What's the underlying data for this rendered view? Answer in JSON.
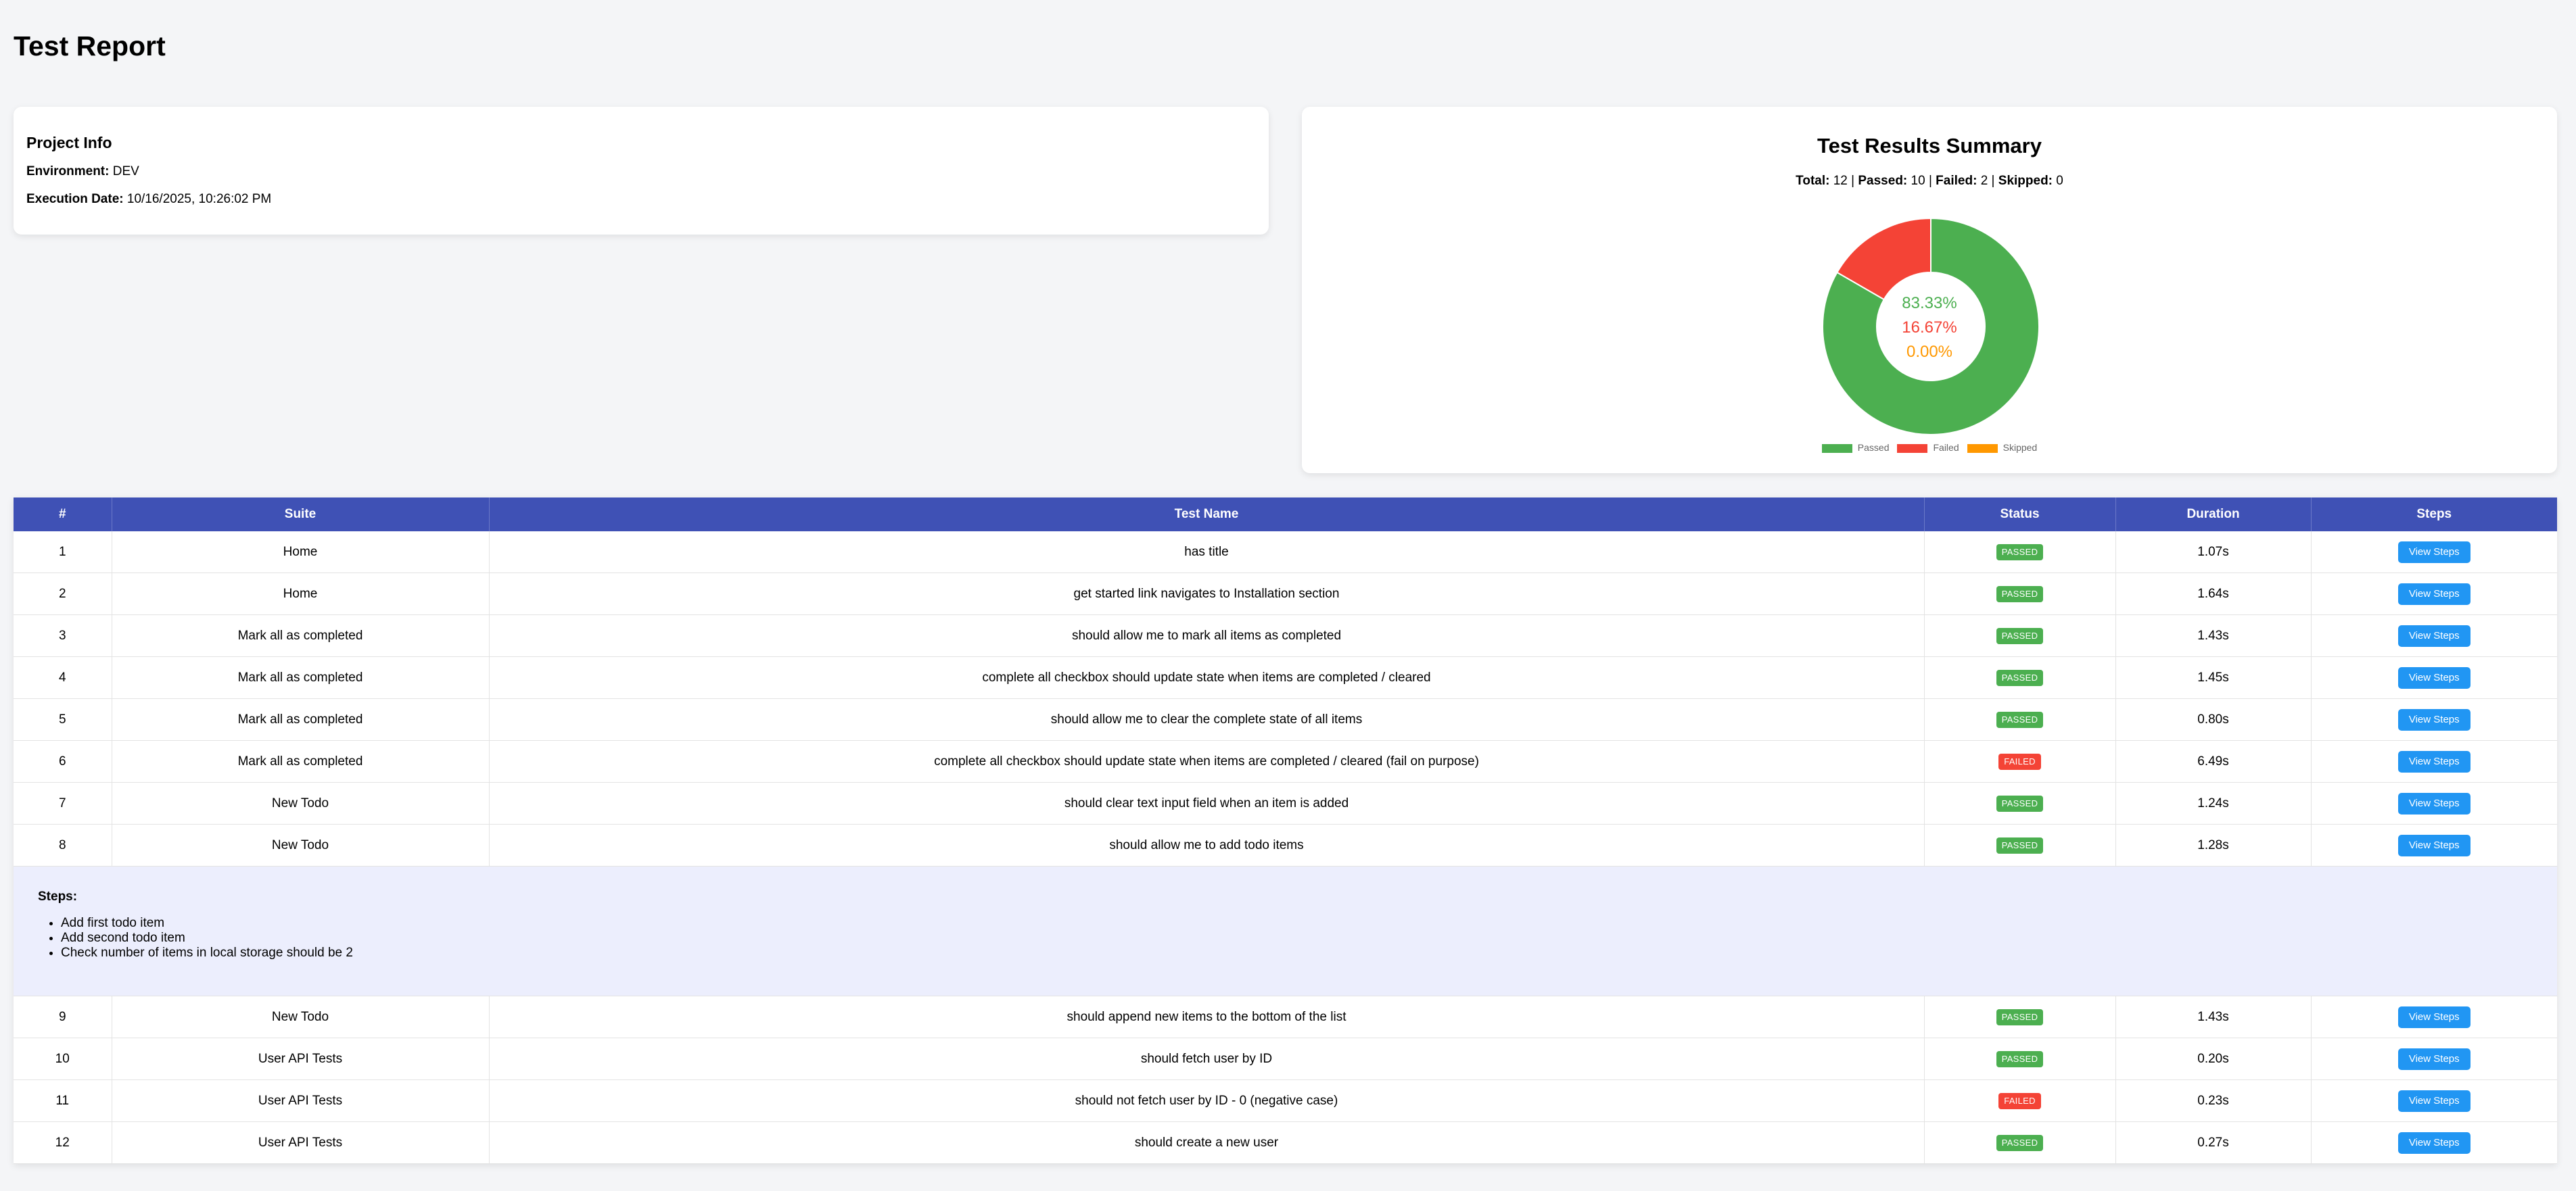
{
  "page_title": "Test Report",
  "project_info": {
    "title": "Project Info",
    "environment_label": "Environment:",
    "environment_value": "DEV",
    "execution_date_label": "Execution Date:",
    "execution_date_value": "10/16/2025, 10:26:02 PM"
  },
  "summary": {
    "title": "Test Results Summary",
    "total_label": "Total:",
    "total_value": "12",
    "passed_label": "Passed:",
    "passed_value": "10",
    "failed_label": "Failed:",
    "failed_value": "2",
    "skipped_label": "Skipped:",
    "skipped_value": "0",
    "separator": "|",
    "passed_pct": "83.33%",
    "failed_pct": "16.67%",
    "skipped_pct": "0.00%"
  },
  "chart_data": {
    "type": "pie",
    "categories": [
      "Passed",
      "Failed",
      "Skipped"
    ],
    "values": [
      10,
      2,
      0
    ],
    "colors": [
      "#4caf50",
      "#f44336",
      "#ff9800"
    ],
    "legend": "bottom"
  },
  "colors": {
    "passed": "#4caf50",
    "failed": "#f44336",
    "skipped": "#ff9800",
    "header": "#3f51b5",
    "button": "#2196f3"
  },
  "table": {
    "headers": [
      "#",
      "Suite",
      "Test Name",
      "Status",
      "Duration",
      "Steps"
    ],
    "button_label": "View Steps",
    "rows": [
      {
        "num": "1",
        "suite": "Home",
        "name": "has title",
        "status": "PASSED",
        "duration": "1.07s"
      },
      {
        "num": "2",
        "suite": "Home",
        "name": "get started link navigates to Installation section",
        "status": "PASSED",
        "duration": "1.64s"
      },
      {
        "num": "3",
        "suite": "Mark all as completed",
        "name": "should allow me to mark all items as completed",
        "status": "PASSED",
        "duration": "1.43s"
      },
      {
        "num": "4",
        "suite": "Mark all as completed",
        "name": "complete all checkbox should update state when items are completed / cleared",
        "status": "PASSED",
        "duration": "1.45s"
      },
      {
        "num": "5",
        "suite": "Mark all as completed",
        "name": "should allow me to clear the complete state of all items",
        "status": "PASSED",
        "duration": "0.80s"
      },
      {
        "num": "6",
        "suite": "Mark all as completed",
        "name": "complete all checkbox should update state when items are completed / cleared (fail on purpose)",
        "status": "FAILED",
        "duration": "6.49s"
      },
      {
        "num": "7",
        "suite": "New Todo",
        "name": "should clear text input field when an item is added",
        "status": "PASSED",
        "duration": "1.24s"
      },
      {
        "num": "8",
        "suite": "New Todo",
        "name": "should allow me to add todo items",
        "status": "PASSED",
        "duration": "1.28s"
      },
      {
        "num": "9",
        "suite": "New Todo",
        "name": "should append new items to the bottom of the list",
        "status": "PASSED",
        "duration": "1.43s"
      },
      {
        "num": "10",
        "suite": "User API Tests",
        "name": "should fetch user by ID",
        "status": "PASSED",
        "duration": "0.20s"
      },
      {
        "num": "11",
        "suite": "User API Tests",
        "name": "should not fetch user by ID - 0 (negative case)",
        "status": "FAILED",
        "duration": "0.23s"
      },
      {
        "num": "12",
        "suite": "User API Tests",
        "name": "should create a new user",
        "status": "PASSED",
        "duration": "0.27s"
      }
    ],
    "expanded_steps": {
      "after_row": "8",
      "title": "Steps:",
      "items": [
        "Add first todo item",
        "Add second todo item",
        "Check number of items in local storage should be 2"
      ]
    }
  }
}
